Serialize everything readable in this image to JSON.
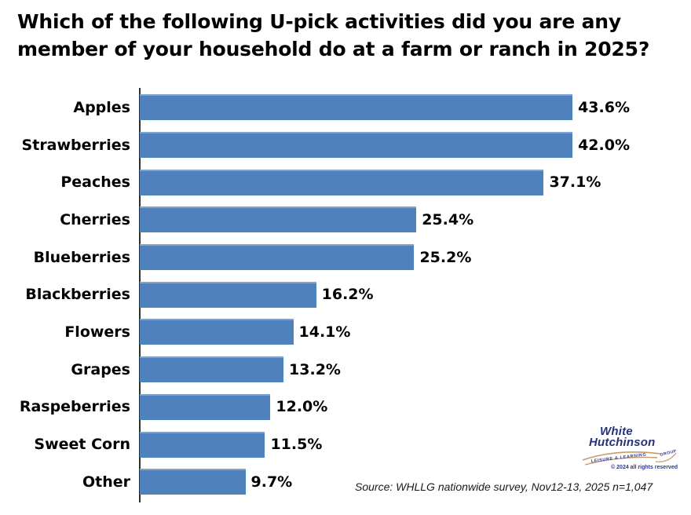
{
  "page": {
    "background": "#FFFFFF"
  },
  "title": {
    "line1": "Which of the following U-pick activities did you are any",
    "line2": "member of your household do at a farm or ranch in 2025?"
  },
  "chart_data": {
    "type": "bar",
    "orientation": "horizontal",
    "title": "Which of the following U-pick activities did you are any member of your household do at a farm or ranch in 2025?",
    "categories": [
      "Apples",
      "Strawberries",
      "Peaches",
      "Cherries",
      "Blueberries",
      "Blackberries",
      "Flowers",
      "Grapes",
      "Raspeberries",
      "Sweet Corn",
      "Other"
    ],
    "values": [
      43.6,
      42.0,
      37.1,
      25.4,
      25.2,
      16.2,
      14.1,
      13.2,
      12.0,
      11.5,
      9.7
    ],
    "value_labels": [
      "43.6%",
      "42.0%",
      "37.1%",
      "25.4%",
      "25.2%",
      "16.2%",
      "14.1%",
      "13.2%",
      "12.0%",
      "11.5%",
      "9.7%"
    ],
    "unit": "%",
    "xlabel": "",
    "ylabel": "",
    "xlim": [
      0,
      45
    ],
    "grid": false,
    "legend": false,
    "bar_color": "#4F81BD",
    "axis_color": "#2E2E2E"
  },
  "source_note": "Source: WHLLG nationwide survey, Nov12-13, 2025 n=1,047",
  "logo": {
    "line1": "White",
    "line2": "Hutchinson",
    "tagline": "LEISURE & LEARNING",
    "group": "GROUP",
    "copyright": "© 2024 all rights reserved",
    "navy_color": "#25337A",
    "tan_color": "#C79B6B"
  }
}
